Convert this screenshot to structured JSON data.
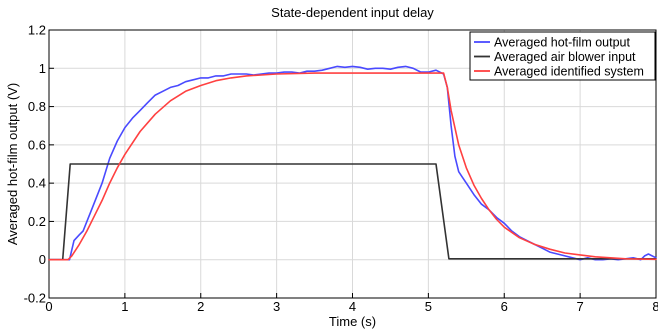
{
  "chart_data": {
    "type": "line",
    "title": "State-dependent input delay",
    "xlabel": "Time (s)",
    "ylabel": "Averaged hot-film output (V)",
    "xlim": [
      0,
      8
    ],
    "ylim": [
      -0.2,
      1.2
    ],
    "xticks": [
      0,
      1,
      2,
      3,
      4,
      5,
      6,
      7,
      8
    ],
    "xtick_labels": [
      "0",
      "1",
      "2",
      "3",
      "4",
      "5",
      "6",
      "7",
      "8"
    ],
    "yticks": [
      -0.2,
      0,
      0.2,
      0.4,
      0.6,
      0.8,
      1,
      1.2
    ],
    "ytick_labels": [
      "-0.2",
      "0",
      "0.2",
      "0.4",
      "0.6",
      "0.8",
      "1",
      "1.2"
    ],
    "grid": true,
    "legend_position": "top-right",
    "series": [
      {
        "name": "Averaged hot-film output",
        "color": "#4a4aff",
        "x": [
          0,
          0.2,
          0.27,
          0.33,
          0.4,
          0.45,
          0.5,
          0.55,
          0.6,
          0.7,
          0.8,
          0.9,
          1.0,
          1.1,
          1.2,
          1.3,
          1.4,
          1.5,
          1.6,
          1.7,
          1.8,
          1.9,
          2.0,
          2.1,
          2.2,
          2.3,
          2.4,
          2.5,
          2.6,
          2.7,
          2.8,
          2.9,
          3.0,
          3.1,
          3.2,
          3.3,
          3.4,
          3.5,
          3.6,
          3.7,
          3.8,
          3.9,
          4.0,
          4.1,
          4.2,
          4.3,
          4.4,
          4.5,
          4.6,
          4.7,
          4.8,
          4.9,
          5.0,
          5.1,
          5.2,
          5.25,
          5.3,
          5.35,
          5.4,
          5.45,
          5.5,
          5.6,
          5.7,
          5.8,
          5.9,
          6.0,
          6.1,
          6.2,
          6.3,
          6.4,
          6.5,
          6.6,
          6.7,
          6.8,
          6.9,
          7.0,
          7.1,
          7.2,
          7.3,
          7.4,
          7.5,
          7.6,
          7.7,
          7.8,
          7.85,
          7.9,
          8.0
        ],
        "y": [
          0,
          0,
          0,
          0.1,
          0.13,
          0.15,
          0.2,
          0.25,
          0.3,
          0.4,
          0.53,
          0.62,
          0.69,
          0.74,
          0.78,
          0.82,
          0.86,
          0.88,
          0.9,
          0.91,
          0.93,
          0.94,
          0.95,
          0.95,
          0.96,
          0.96,
          0.97,
          0.97,
          0.97,
          0.965,
          0.97,
          0.975,
          0.975,
          0.98,
          0.98,
          0.975,
          0.985,
          0.985,
          0.99,
          1.0,
          1.01,
          1.005,
          1.01,
          1.005,
          0.995,
          1.0,
          1.0,
          0.995,
          1.005,
          1.01,
          1.0,
          0.98,
          0.98,
          0.99,
          0.97,
          0.9,
          0.7,
          0.54,
          0.46,
          0.43,
          0.4,
          0.34,
          0.29,
          0.26,
          0.22,
          0.19,
          0.15,
          0.12,
          0.1,
          0.08,
          0.06,
          0.04,
          0.03,
          0.02,
          0.01,
          0.0,
          0.01,
          0.0,
          0.0,
          0.005,
          0.0,
          0.005,
          0.01,
          0.0,
          0.02,
          0.03,
          0.01
        ]
      },
      {
        "name": "Averaged air blower input",
        "color": "#333333",
        "x": [
          0,
          0.18,
          0.28,
          5.1,
          5.27,
          8.0
        ],
        "y": [
          0,
          0,
          0.5,
          0.5,
          0.005,
          0.005
        ]
      },
      {
        "name": "Averaged identified system",
        "color": "#ff4040",
        "x": [
          0,
          0.25,
          0.3,
          0.4,
          0.5,
          0.6,
          0.7,
          0.8,
          0.9,
          1.0,
          1.2,
          1.4,
          1.6,
          1.8,
          2.0,
          2.2,
          2.4,
          2.6,
          2.8,
          3.0,
          3.5,
          4.0,
          4.5,
          5.0,
          5.2,
          5.25,
          5.3,
          5.4,
          5.5,
          5.6,
          5.7,
          5.8,
          5.9,
          6.0,
          6.2,
          6.4,
          6.6,
          6.8,
          7.0,
          7.2,
          7.4,
          7.6,
          7.8,
          8.0
        ],
        "y": [
          0,
          0,
          0.02,
          0.08,
          0.15,
          0.23,
          0.31,
          0.4,
          0.48,
          0.55,
          0.67,
          0.76,
          0.83,
          0.88,
          0.91,
          0.935,
          0.95,
          0.96,
          0.965,
          0.97,
          0.975,
          0.975,
          0.975,
          0.975,
          0.975,
          0.9,
          0.78,
          0.6,
          0.48,
          0.39,
          0.32,
          0.26,
          0.21,
          0.17,
          0.115,
          0.08,
          0.055,
          0.035,
          0.025,
          0.015,
          0.01,
          0.005,
          0.003,
          0.002
        ]
      }
    ]
  }
}
